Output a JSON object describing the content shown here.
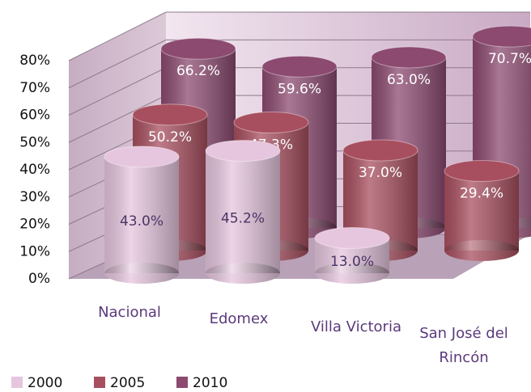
{
  "chart_data": {
    "type": "bar",
    "categories": [
      "Nacional",
      "Edomex",
      "Villa Victoria",
      "San José del Rincón"
    ],
    "series": [
      {
        "name": "2000",
        "color": "#e6c6de",
        "values": [
          43.0,
          45.2,
          13.0,
          null
        ],
        "value_labels": [
          "43.0%",
          "45.2%",
          "13.0%",
          null
        ]
      },
      {
        "name": "2005",
        "color": "#a84f5f",
        "values": [
          50.2,
          47.3,
          37.0,
          29.4
        ],
        "value_labels": [
          "50.2%",
          "47.3%",
          "37.0%",
          "29.4%"
        ]
      },
      {
        "name": "2010",
        "color": "#8c4a70",
        "values": [
          66.2,
          59.6,
          63.0,
          70.7
        ],
        "value_labels": [
          "66.2%",
          "59.6%",
          "63.0%",
          "70.7%"
        ]
      }
    ],
    "ylim": [
      0,
      80
    ],
    "yticks": [
      {
        "value": 0,
        "label": "0%"
      },
      {
        "value": 10,
        "label": "10%"
      },
      {
        "value": 20,
        "label": "20%"
      },
      {
        "value": 30,
        "label": "30%"
      },
      {
        "value": 40,
        "label": "40%"
      },
      {
        "value": 50,
        "label": "50%"
      },
      {
        "value": 60,
        "label": "60%"
      },
      {
        "value": 70,
        "label": "70%"
      },
      {
        "value": 80,
        "label": "80%"
      }
    ],
    "grid": true
  }
}
